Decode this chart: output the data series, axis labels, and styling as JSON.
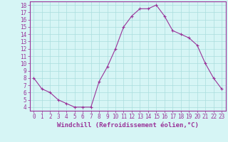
{
  "x": [
    0,
    1,
    2,
    3,
    4,
    5,
    6,
    7,
    8,
    9,
    10,
    11,
    12,
    13,
    14,
    15,
    16,
    17,
    18,
    19,
    20,
    21,
    22,
    23
  ],
  "y": [
    8.0,
    6.5,
    6.0,
    5.0,
    4.5,
    4.0,
    4.0,
    4.0,
    7.5,
    9.5,
    12.0,
    15.0,
    16.5,
    17.5,
    17.5,
    18.0,
    16.5,
    14.5,
    14.0,
    13.5,
    12.5,
    10.0,
    8.0,
    6.5
  ],
  "line_color": "#993399",
  "marker": "+",
  "marker_size": 3,
  "bg_color": "#d6f5f5",
  "grid_color": "#aadddd",
  "xlabel": "Windchill (Refroidissement éolien,°C)",
  "xlim": [
    -0.5,
    23.5
  ],
  "ylim": [
    3.5,
    18.5
  ],
  "yticks": [
    4,
    5,
    6,
    7,
    8,
    9,
    10,
    11,
    12,
    13,
    14,
    15,
    16,
    17,
    18
  ],
  "xticks": [
    0,
    1,
    2,
    3,
    4,
    5,
    6,
    7,
    8,
    9,
    10,
    11,
    12,
    13,
    14,
    15,
    16,
    17,
    18,
    19,
    20,
    21,
    22,
    23
  ],
  "tick_label_fontsize": 5.5,
  "xlabel_fontsize": 6.5,
  "axis_color": "#993399",
  "line_width": 0.8,
  "marker_edge_width": 0.8
}
